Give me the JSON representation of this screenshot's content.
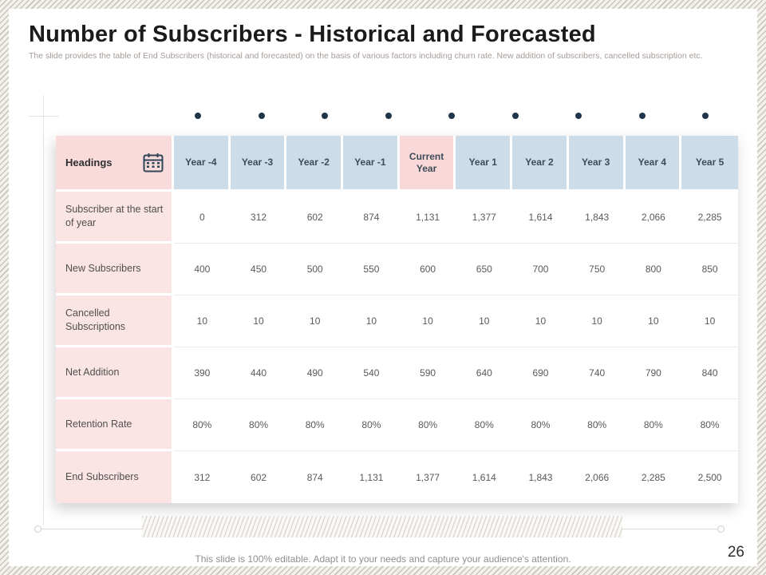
{
  "slide": {
    "title": "Number of Subscribers - Historical and Forecasted",
    "subtitle": "The slide provides the table of End Subscribers (historical and forecasted) on the basis of various factors including churn rate. New addition of subscribers, cancelled subscription etc.",
    "footer": "This slide is 100% editable. Adapt it to your needs and capture your audience's attention.",
    "page_number": "26"
  },
  "table": {
    "header_label": "Headings",
    "header_icon": "calendar-icon",
    "highlight_column_index": 4,
    "columns": [
      "Year -4",
      "Year -3",
      "Year -2",
      "Year -1",
      "Current Year",
      "Year 1",
      "Year 2",
      "Year 3",
      "Year 4",
      "Year 5"
    ],
    "rows": [
      {
        "label": "Subscriber at the start of year",
        "values": [
          "0",
          "312",
          "602",
          "874",
          "1,131",
          "1,377",
          "1,614",
          "1,843",
          "2,066",
          "2,285"
        ]
      },
      {
        "label": "New Subscribers",
        "values": [
          "400",
          "450",
          "500",
          "550",
          "600",
          "650",
          "700",
          "750",
          "800",
          "850"
        ]
      },
      {
        "label": "Cancelled Subscriptions",
        "values": [
          "10",
          "10",
          "10",
          "10",
          "10",
          "10",
          "10",
          "10",
          "10",
          "10"
        ]
      },
      {
        "label": "Net Addition",
        "values": [
          "390",
          "440",
          "490",
          "540",
          "590",
          "640",
          "690",
          "740",
          "790",
          "840"
        ]
      },
      {
        "label": "Retention Rate",
        "values": [
          "80%",
          "80%",
          "80%",
          "80%",
          "80%",
          "80%",
          "80%",
          "80%",
          "80%",
          "80%"
        ]
      },
      {
        "label": "End Subscribers",
        "values": [
          "312",
          "602",
          "874",
          "1,131",
          "1,377",
          "1,614",
          "1,843",
          "2,066",
          "2,285",
          "2,500"
        ]
      }
    ]
  },
  "decor": {
    "dot_count": 9
  },
  "colors": {
    "accent_navy": "#20354a",
    "header_blue": "#ccdce8",
    "header_pink": "#f9dbdc",
    "current_year_pink": "#f8d8d9",
    "row_label_pink": "#fbe4e4",
    "title_text": "#1b1b1b",
    "subtitle_text": "#a59a96",
    "value_text": "#595959"
  }
}
